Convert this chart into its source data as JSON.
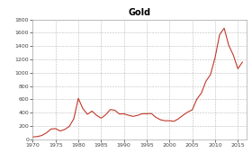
{
  "title": "Gold",
  "title_fontsize": 7,
  "title_fontweight": "bold",
  "line_color": "#c0392b",
  "background_color": "#ffffff",
  "grid_color": "#aaaaaa",
  "xlim": [
    1970,
    2017
  ],
  "ylim": [
    0,
    1800
  ],
  "xticks": [
    1970,
    1975,
    1980,
    1985,
    1990,
    1995,
    2000,
    2005,
    2010,
    2015
  ],
  "yticks": [
    0,
    200,
    400,
    600,
    800,
    1000,
    1200,
    1400,
    1600,
    1800
  ],
  "tick_fontsize": 4.5,
  "years": [
    1970,
    1971,
    1972,
    1973,
    1974,
    1975,
    1976,
    1977,
    1978,
    1979,
    1980,
    1981,
    1982,
    1983,
    1984,
    1985,
    1986,
    1987,
    1988,
    1989,
    1990,
    1991,
    1992,
    1993,
    1994,
    1995,
    1996,
    1997,
    1998,
    1999,
    2000,
    2001,
    2002,
    2003,
    2004,
    2005,
    2006,
    2007,
    2008,
    2009,
    2010,
    2011,
    2012,
    2013,
    2014,
    2015,
    2016
  ],
  "prices": [
    36,
    41,
    58,
    97,
    154,
    161,
    125,
    148,
    193,
    306,
    615,
    460,
    376,
    424,
    361,
    317,
    368,
    447,
    437,
    381,
    383,
    362,
    344,
    360,
    384,
    384,
    388,
    331,
    294,
    279,
    279,
    271,
    310,
    363,
    409,
    444,
    603,
    695,
    872,
    972,
    1225,
    1571,
    1669,
    1411,
    1266,
    1060,
    1160
  ]
}
